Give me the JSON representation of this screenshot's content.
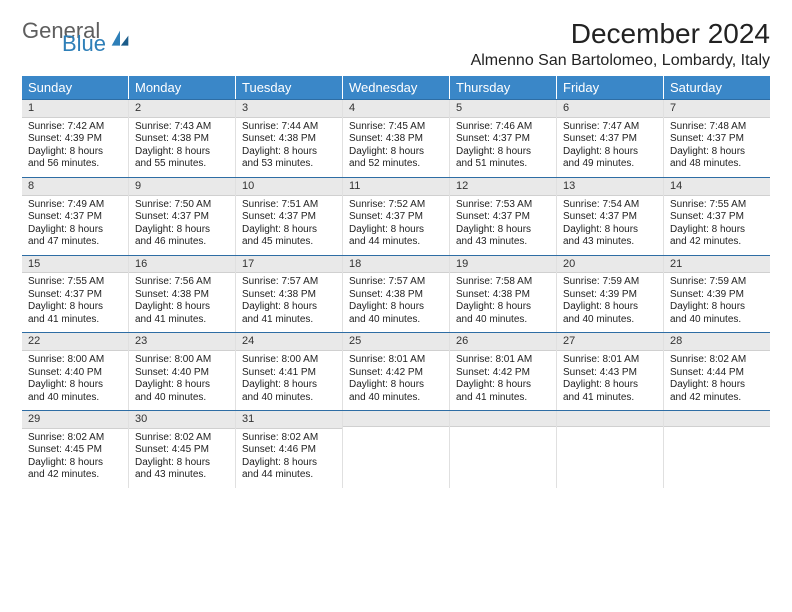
{
  "logo": {
    "word1": "General",
    "word2": "Blue"
  },
  "header": {
    "month_title": "December 2024",
    "location": "Almenno San Bartolomeo, Lombardy, Italy"
  },
  "day_headers": [
    "Sunday",
    "Monday",
    "Tuesday",
    "Wednesday",
    "Thursday",
    "Friday",
    "Saturday"
  ],
  "colors": {
    "header_bg": "#3a87c8",
    "header_text": "#ffffff",
    "week_divider": "#2e6da4",
    "daynum_bg": "#e9e9e9"
  },
  "weeks": [
    [
      {
        "n": "1",
        "sr": "Sunrise: 7:42 AM",
        "ss": "Sunset: 4:39 PM",
        "dl": "Daylight: 8 hours and 56 minutes."
      },
      {
        "n": "2",
        "sr": "Sunrise: 7:43 AM",
        "ss": "Sunset: 4:38 PM",
        "dl": "Daylight: 8 hours and 55 minutes."
      },
      {
        "n": "3",
        "sr": "Sunrise: 7:44 AM",
        "ss": "Sunset: 4:38 PM",
        "dl": "Daylight: 8 hours and 53 minutes."
      },
      {
        "n": "4",
        "sr": "Sunrise: 7:45 AM",
        "ss": "Sunset: 4:38 PM",
        "dl": "Daylight: 8 hours and 52 minutes."
      },
      {
        "n": "5",
        "sr": "Sunrise: 7:46 AM",
        "ss": "Sunset: 4:37 PM",
        "dl": "Daylight: 8 hours and 51 minutes."
      },
      {
        "n": "6",
        "sr": "Sunrise: 7:47 AM",
        "ss": "Sunset: 4:37 PM",
        "dl": "Daylight: 8 hours and 49 minutes."
      },
      {
        "n": "7",
        "sr": "Sunrise: 7:48 AM",
        "ss": "Sunset: 4:37 PM",
        "dl": "Daylight: 8 hours and 48 minutes."
      }
    ],
    [
      {
        "n": "8",
        "sr": "Sunrise: 7:49 AM",
        "ss": "Sunset: 4:37 PM",
        "dl": "Daylight: 8 hours and 47 minutes."
      },
      {
        "n": "9",
        "sr": "Sunrise: 7:50 AM",
        "ss": "Sunset: 4:37 PM",
        "dl": "Daylight: 8 hours and 46 minutes."
      },
      {
        "n": "10",
        "sr": "Sunrise: 7:51 AM",
        "ss": "Sunset: 4:37 PM",
        "dl": "Daylight: 8 hours and 45 minutes."
      },
      {
        "n": "11",
        "sr": "Sunrise: 7:52 AM",
        "ss": "Sunset: 4:37 PM",
        "dl": "Daylight: 8 hours and 44 minutes."
      },
      {
        "n": "12",
        "sr": "Sunrise: 7:53 AM",
        "ss": "Sunset: 4:37 PM",
        "dl": "Daylight: 8 hours and 43 minutes."
      },
      {
        "n": "13",
        "sr": "Sunrise: 7:54 AM",
        "ss": "Sunset: 4:37 PM",
        "dl": "Daylight: 8 hours and 43 minutes."
      },
      {
        "n": "14",
        "sr": "Sunrise: 7:55 AM",
        "ss": "Sunset: 4:37 PM",
        "dl": "Daylight: 8 hours and 42 minutes."
      }
    ],
    [
      {
        "n": "15",
        "sr": "Sunrise: 7:55 AM",
        "ss": "Sunset: 4:37 PM",
        "dl": "Daylight: 8 hours and 41 minutes."
      },
      {
        "n": "16",
        "sr": "Sunrise: 7:56 AM",
        "ss": "Sunset: 4:38 PM",
        "dl": "Daylight: 8 hours and 41 minutes."
      },
      {
        "n": "17",
        "sr": "Sunrise: 7:57 AM",
        "ss": "Sunset: 4:38 PM",
        "dl": "Daylight: 8 hours and 41 minutes."
      },
      {
        "n": "18",
        "sr": "Sunrise: 7:57 AM",
        "ss": "Sunset: 4:38 PM",
        "dl": "Daylight: 8 hours and 40 minutes."
      },
      {
        "n": "19",
        "sr": "Sunrise: 7:58 AM",
        "ss": "Sunset: 4:38 PM",
        "dl": "Daylight: 8 hours and 40 minutes."
      },
      {
        "n": "20",
        "sr": "Sunrise: 7:59 AM",
        "ss": "Sunset: 4:39 PM",
        "dl": "Daylight: 8 hours and 40 minutes."
      },
      {
        "n": "21",
        "sr": "Sunrise: 7:59 AM",
        "ss": "Sunset: 4:39 PM",
        "dl": "Daylight: 8 hours and 40 minutes."
      }
    ],
    [
      {
        "n": "22",
        "sr": "Sunrise: 8:00 AM",
        "ss": "Sunset: 4:40 PM",
        "dl": "Daylight: 8 hours and 40 minutes."
      },
      {
        "n": "23",
        "sr": "Sunrise: 8:00 AM",
        "ss": "Sunset: 4:40 PM",
        "dl": "Daylight: 8 hours and 40 minutes."
      },
      {
        "n": "24",
        "sr": "Sunrise: 8:00 AM",
        "ss": "Sunset: 4:41 PM",
        "dl": "Daylight: 8 hours and 40 minutes."
      },
      {
        "n": "25",
        "sr": "Sunrise: 8:01 AM",
        "ss": "Sunset: 4:42 PM",
        "dl": "Daylight: 8 hours and 40 minutes."
      },
      {
        "n": "26",
        "sr": "Sunrise: 8:01 AM",
        "ss": "Sunset: 4:42 PM",
        "dl": "Daylight: 8 hours and 41 minutes."
      },
      {
        "n": "27",
        "sr": "Sunrise: 8:01 AM",
        "ss": "Sunset: 4:43 PM",
        "dl": "Daylight: 8 hours and 41 minutes."
      },
      {
        "n": "28",
        "sr": "Sunrise: 8:02 AM",
        "ss": "Sunset: 4:44 PM",
        "dl": "Daylight: 8 hours and 42 minutes."
      }
    ],
    [
      {
        "n": "29",
        "sr": "Sunrise: 8:02 AM",
        "ss": "Sunset: 4:45 PM",
        "dl": "Daylight: 8 hours and 42 minutes."
      },
      {
        "n": "30",
        "sr": "Sunrise: 8:02 AM",
        "ss": "Sunset: 4:45 PM",
        "dl": "Daylight: 8 hours and 43 minutes."
      },
      {
        "n": "31",
        "sr": "Sunrise: 8:02 AM",
        "ss": "Sunset: 4:46 PM",
        "dl": "Daylight: 8 hours and 44 minutes."
      },
      null,
      null,
      null,
      null
    ]
  ]
}
